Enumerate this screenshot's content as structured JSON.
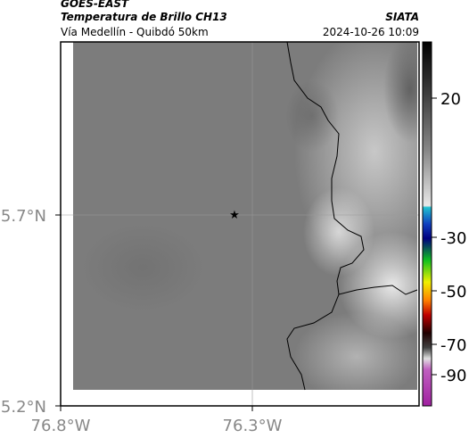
{
  "header": {
    "title": "GOES-EAST",
    "subtitle": "Temperatura de Brillo CH13",
    "location": "Vía Medellín - Quibdó 50km",
    "source": "SIATA",
    "timestamp": "2024-10-26 10:09"
  },
  "map": {
    "lat_labels": [
      "5.7°N",
      "5.2°N"
    ],
    "lon_labels": [
      "76.8°W",
      "76.3°W"
    ]
  },
  "colorbar": {
    "ticks": [
      20,
      -30,
      -50,
      -70,
      -90
    ]
  }
}
